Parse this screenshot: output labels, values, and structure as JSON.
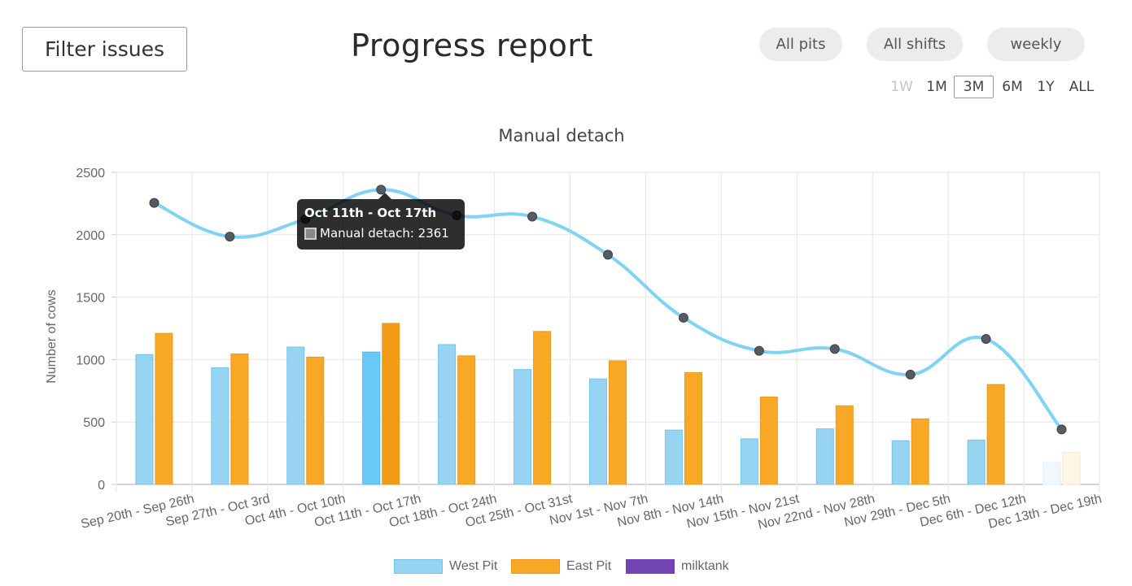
{
  "header": {
    "filter_label": "Filter issues",
    "title": "Progress report",
    "filters": {
      "pits": "All pits",
      "shifts": "All shifts",
      "period": "weekly"
    },
    "ranges": [
      "1W",
      "1M",
      "3M",
      "6M",
      "1Y",
      "ALL"
    ],
    "active_range": "3M",
    "disabled_range": "1W"
  },
  "tooltip": {
    "title": "Oct 11th - Oct 17th",
    "text": "Manual detach: 2361"
  },
  "colors": {
    "west": "#97d4f2",
    "west_border": "#72c3ec",
    "east": "#f9a825",
    "east_border": "#e59a1f",
    "milktank": "#7344b4",
    "line": "#7fd3f5",
    "point": "#555b60"
  },
  "chart_data": {
    "type": "bar",
    "title": "Manual detach",
    "ylabel": "Number of  cows",
    "ylim": [
      0,
      2500
    ],
    "yticks": [
      0,
      500,
      1000,
      1500,
      2000,
      2500
    ],
    "categories": [
      "Sep 20th - Sep 26th",
      "Sep 27th - Oct 3rd",
      "Oct 4th - Oct 10th",
      "Oct 11th - Oct 17th",
      "Oct 18th - Oct 24th",
      "Oct 25th - Oct 31st",
      "Nov 1st - Nov 7th",
      "Nov 8th - Nov 14th",
      "Nov 15th - Nov 21st",
      "Nov 22nd - Nov 28th",
      "Nov 29th - Dec 5th",
      "Dec 6th - Dec 12th",
      "Dec 13th - Dec 19th"
    ],
    "series": [
      {
        "name": "West Pit",
        "type": "bar",
        "values": [
          1040,
          935,
          1100,
          1060,
          1120,
          920,
          845,
          435,
          365,
          445,
          350,
          355,
          175
        ]
      },
      {
        "name": "East Pit",
        "type": "bar",
        "values": [
          1210,
          1045,
          1020,
          1290,
          1030,
          1225,
          990,
          895,
          700,
          630,
          525,
          800,
          255
        ]
      },
      {
        "name": "milktank",
        "type": "line",
        "values": [
          2255,
          1985,
          2125,
          2361,
          2155,
          2145,
          1840,
          1335,
          1070,
          1085,
          880,
          1165,
          440
        ]
      }
    ],
    "legend": [
      "West Pit",
      "East Pit",
      "milktank"
    ],
    "legend_position": "bottom",
    "grid": true,
    "highlighted_index": 3
  }
}
